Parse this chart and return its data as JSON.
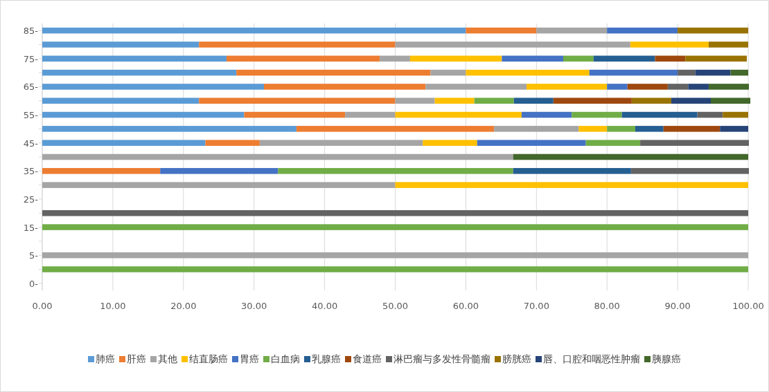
{
  "chart_data": {
    "type": "bar",
    "orientation": "horizontal",
    "stacked": true,
    "categories": [
      "85-",
      null,
      "75-",
      null,
      "65-",
      null,
      "55-",
      null,
      "45-",
      null,
      "35-",
      null,
      "25-",
      null,
      "15-",
      null,
      "5-",
      null,
      "0-"
    ],
    "series": [
      {
        "name": "肺癌",
        "color": "#5b9bd5",
        "values": [
          60,
          22.2,
          26.1,
          27.5,
          31.4,
          22.2,
          28.6,
          36,
          23.1,
          null,
          null,
          null,
          null,
          null,
          null,
          null,
          null,
          null,
          null
        ]
      },
      {
        "name": "肝癌",
        "color": "#ed7d31",
        "values": [
          10,
          27.8,
          21.7,
          27.5,
          22.9,
          27.8,
          14.3,
          28,
          7.7,
          null,
          16.7,
          null,
          null,
          null,
          null,
          null,
          null,
          null,
          null
        ]
      },
      {
        "name": "其他",
        "color": "#a5a5a5",
        "values": [
          10,
          33.3,
          4.3,
          5,
          14.3,
          5.6,
          7.1,
          12,
          23.1,
          66.7,
          null,
          50,
          null,
          null,
          null,
          null,
          100,
          null,
          null
        ]
      },
      {
        "name": "结直肠癌",
        "color": "#ffc000",
        "values": [
          null,
          11.1,
          13,
          17.5,
          11.4,
          5.6,
          17.9,
          4,
          7.7,
          null,
          null,
          50,
          null,
          null,
          null,
          null,
          null,
          null,
          null
        ]
      },
      {
        "name": "胃癌",
        "color": "#4472c4",
        "values": [
          10,
          null,
          8.7,
          12.5,
          2.9,
          null,
          7.1,
          null,
          15.4,
          null,
          16.7,
          null,
          null,
          null,
          null,
          null,
          null,
          null,
          null
        ]
      },
      {
        "name": "白血病",
        "color": "#70ad47",
        "values": [
          null,
          null,
          4.3,
          null,
          null,
          5.6,
          7.1,
          4,
          7.7,
          null,
          33.3,
          null,
          null,
          null,
          100,
          null,
          null,
          100,
          null
        ]
      },
      {
        "name": "乳腺癌",
        "color": "#255e91",
        "values": [
          null,
          null,
          8.7,
          null,
          null,
          5.6,
          10.7,
          4,
          null,
          null,
          16.7,
          null,
          null,
          null,
          null,
          null,
          null,
          null,
          null
        ]
      },
      {
        "name": "食道癌",
        "color": "#9e480e",
        "values": [
          null,
          null,
          4.3,
          null,
          5.7,
          11.1,
          null,
          8,
          null,
          null,
          null,
          null,
          null,
          null,
          null,
          null,
          null,
          null,
          null
        ]
      },
      {
        "name": "淋巴瘤与多发性骨髓瘤",
        "color": "#636363",
        "values": [
          null,
          null,
          null,
          2.5,
          2.9,
          null,
          3.6,
          null,
          15.4,
          null,
          16.7,
          null,
          null,
          100,
          null,
          null,
          null,
          null,
          null
        ]
      },
      {
        "name": "膀胱癌",
        "color": "#997300",
        "values": [
          10,
          5.6,
          8.7,
          null,
          null,
          5.6,
          3.6,
          null,
          null,
          null,
          null,
          null,
          null,
          null,
          null,
          null,
          null,
          null,
          null
        ]
      },
      {
        "name": "唇、口腔和咽恶性肿瘤",
        "color": "#264478",
        "values": [
          null,
          null,
          null,
          5,
          2.9,
          5.6,
          null,
          4,
          null,
          null,
          null,
          null,
          null,
          null,
          null,
          null,
          null,
          null,
          null
        ]
      },
      {
        "name": "胰腺癌",
        "color": "#43682b",
        "values": [
          null,
          null,
          null,
          2.5,
          5.7,
          5.6,
          null,
          null,
          null,
          33.3,
          null,
          null,
          null,
          null,
          null,
          null,
          null,
          null,
          null
        ]
      }
    ],
    "xlim": [
      0,
      100
    ],
    "xticks": [
      {
        "value": 0,
        "label": "0.00"
      },
      {
        "value": 10,
        "label": "10.00"
      },
      {
        "value": 20,
        "label": "20.00"
      },
      {
        "value": 30,
        "label": "30.00"
      },
      {
        "value": 40,
        "label": "40.00"
      },
      {
        "value": 50,
        "label": "50.00"
      },
      {
        "value": 60,
        "label": "60.00"
      },
      {
        "value": 70,
        "label": "70.00"
      },
      {
        "value": 80,
        "label": "80.00"
      },
      {
        "value": 90,
        "label": "90.00"
      },
      {
        "value": 100,
        "label": "100.00"
      }
    ],
    "grid": "x",
    "legend": "bottom"
  }
}
